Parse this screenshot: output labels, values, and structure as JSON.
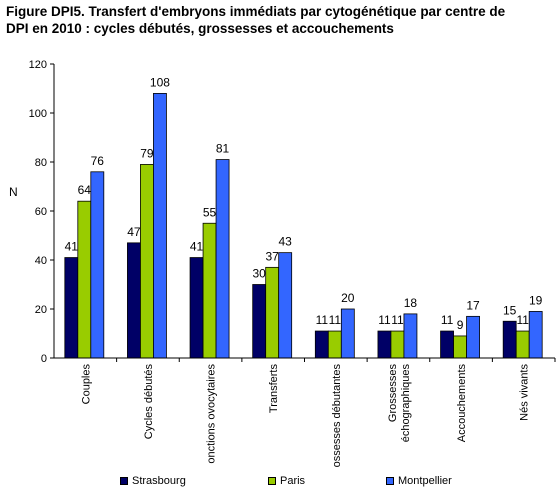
{
  "title_lines": [
    "Figure DPI5. Transfert d'embryons immédiats par cytogénétique par centre de",
    "DPI en 2010 : cycles débutés, grossesses et accouchements"
  ],
  "colors": {
    "strasbourg": "#000066",
    "paris": "#99CC00",
    "montpellier": "#3366FF"
  },
  "chart_data": {
    "type": "bar",
    "title": "Figure DPI5. Transfert d'embryons immédiats par cytogénétique par centre de DPI en 2010 : cycles débutés, grossesses et accouchements",
    "ylabel": "N",
    "xlabel": "",
    "ylim": [
      0,
      120
    ],
    "yticks": [
      0,
      20,
      40,
      60,
      80,
      100,
      120
    ],
    "grid": false,
    "legend": "bottom",
    "categories": [
      "Couples",
      "Cycles débutés",
      "onctions ovocytaires",
      "Transferts",
      "ossesses débutantes",
      "Grossesses échographiques",
      "Accouchements",
      "Nés vivants"
    ],
    "category_lines": [
      [
        "Couples"
      ],
      [
        "Cycles débutés"
      ],
      [
        "onctions ovocytaires"
      ],
      [
        "Transferts"
      ],
      [
        "ossesses débutantes"
      ],
      [
        "Grossesses",
        "échographiques"
      ],
      [
        "Accouchements"
      ],
      [
        "Nés vivants"
      ]
    ],
    "series": [
      {
        "name": "Strasbourg",
        "values": [
          41,
          47,
          41,
          30,
          11,
          11,
          11,
          15
        ]
      },
      {
        "name": "Paris",
        "values": [
          64,
          79,
          55,
          37,
          11,
          11,
          9,
          11
        ]
      },
      {
        "name": "Montpellier",
        "values": [
          76,
          108,
          81,
          43,
          20,
          18,
          17,
          19
        ]
      }
    ]
  }
}
